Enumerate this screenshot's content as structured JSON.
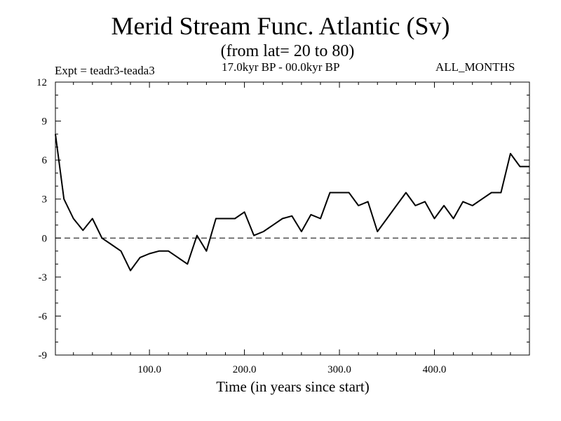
{
  "chart_data": {
    "type": "line",
    "title": "Merid Stream Func. Atlantic (Sv)",
    "subtitle": "(from lat= 20 to 80)",
    "annotation_left": "Expt = teadr3-teada3",
    "annotation_center": "17.0kyr BP - 00.0kyr BP",
    "annotation_right": "ALL_MONTHS",
    "xlabel": "Time (in years since start)",
    "ylabel": "",
    "xlim": [
      1,
      500
    ],
    "ylim": [
      -9,
      12
    ],
    "xticks": [
      100,
      200,
      300,
      400
    ],
    "xtick_labels": [
      "100.0",
      "200.0",
      "300.0",
      "400.0"
    ],
    "yticks": [
      -9,
      -6,
      -3,
      0,
      3,
      6,
      9,
      12
    ],
    "ytick_labels": [
      "-9",
      "-6",
      "-3",
      "0",
      "3",
      "6",
      "9",
      "12"
    ],
    "zero_line": "dashed",
    "grid": false,
    "x": [
      1,
      10,
      20,
      30,
      40,
      50,
      60,
      70,
      80,
      90,
      100,
      110,
      120,
      130,
      140,
      150,
      160,
      170,
      180,
      190,
      200,
      210,
      220,
      230,
      240,
      250,
      260,
      270,
      280,
      290,
      300,
      310,
      320,
      330,
      340,
      350,
      360,
      370,
      380,
      390,
      400,
      410,
      420,
      430,
      440,
      450,
      460,
      470,
      480,
      490,
      500
    ],
    "values": [
      8.0,
      3.0,
      1.5,
      0.6,
      1.5,
      0.0,
      -0.5,
      -1.0,
      -2.5,
      -1.5,
      -1.2,
      -1.0,
      -1.0,
      -1.5,
      -2.0,
      0.2,
      -1.0,
      1.5,
      1.5,
      1.5,
      2.0,
      0.2,
      0.5,
      1.0,
      1.5,
      1.7,
      0.5,
      1.8,
      1.5,
      3.5,
      3.5,
      3.5,
      2.5,
      2.8,
      0.5,
      1.5,
      2.5,
      3.5,
      2.5,
      2.8,
      1.5,
      2.5,
      1.5,
      2.8,
      2.5,
      3.0,
      3.5,
      3.5,
      6.5,
      5.5,
      5.5
    ]
  }
}
